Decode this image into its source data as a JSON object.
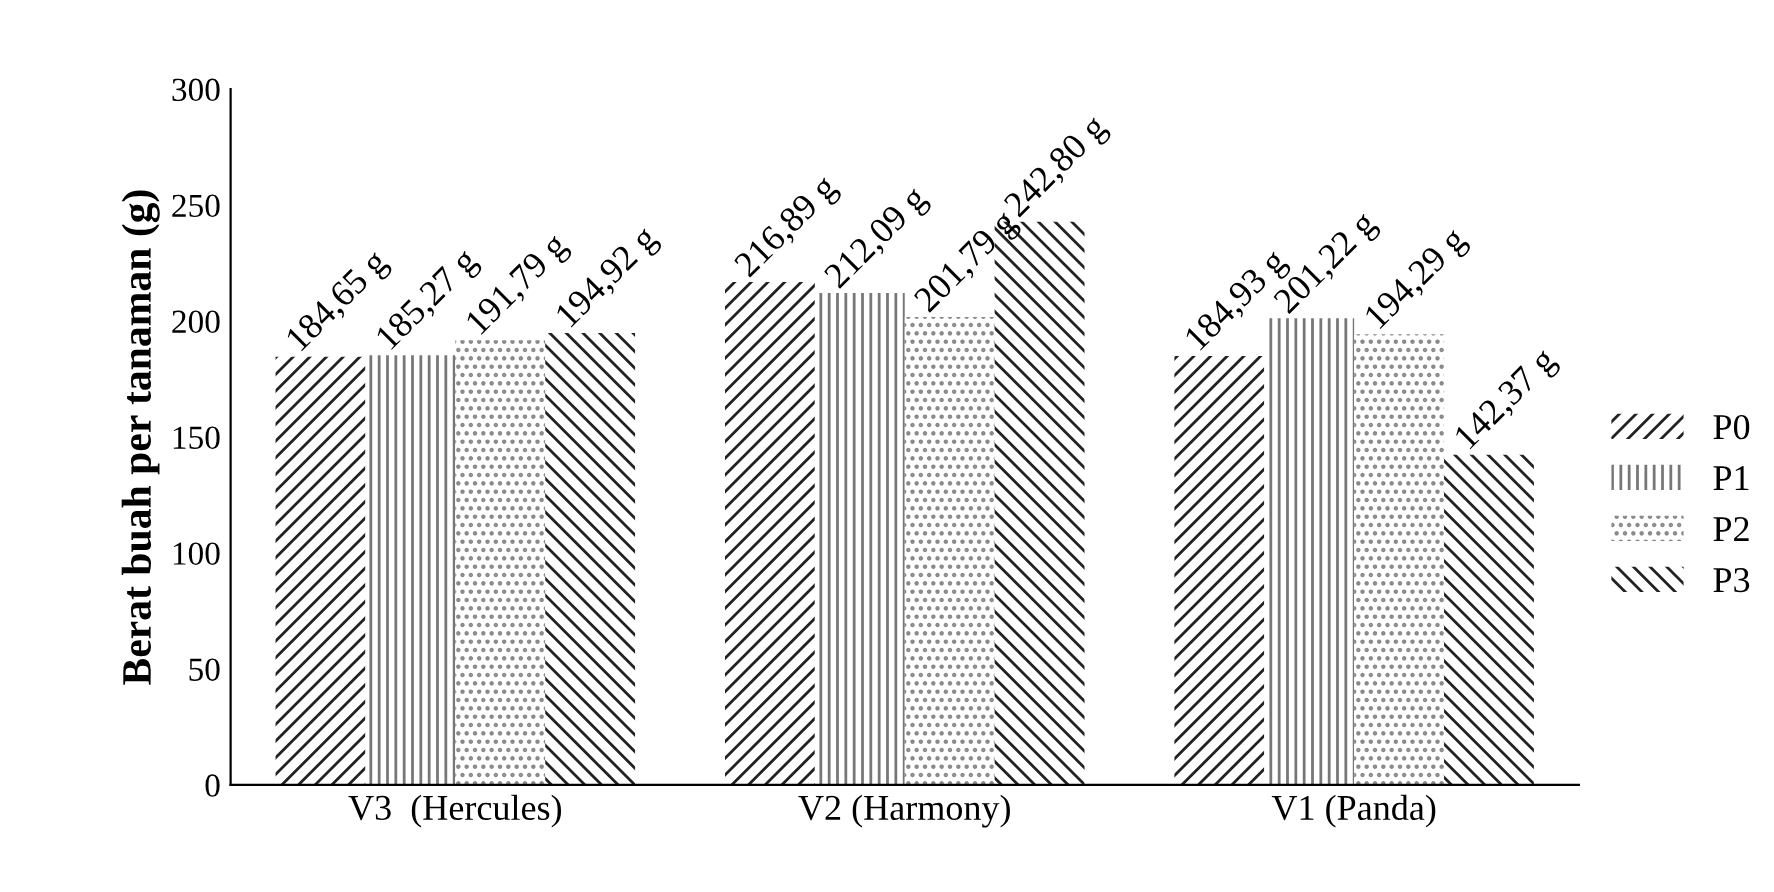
{
  "chart_data": {
    "type": "bar",
    "ylabel": "Berat buah per tanaman (g)",
    "categories": [
      "V3  (Hercules)",
      "V2 (Harmony)",
      "V1 (Panda)"
    ],
    "series": [
      {
        "name": "P0",
        "color": "#222222",
        "values": [
          184.65,
          216.89,
          184.93
        ],
        "value_labels": [
          "184,65 g",
          "216,89 g",
          "184,93 g"
        ]
      },
      {
        "name": "P1",
        "color": "#777777",
        "values": [
          185.27,
          212.09,
          201.22
        ],
        "value_labels": [
          "185,27 g",
          "212,09 g",
          "201,22 g"
        ]
      },
      {
        "name": "P2",
        "color": "#888888",
        "values": [
          191.79,
          201.79,
          194.29
        ],
        "value_labels": [
          "191,79 g",
          "201,79 g",
          "194,29 g"
        ]
      },
      {
        "name": "P3",
        "color": "#222222",
        "values": [
          194.92,
          242.8,
          142.37
        ],
        "value_labels": [
          "194,92 g",
          "242,80 g",
          "142,37 g"
        ]
      }
    ],
    "ylim": [
      0,
      300
    ],
    "yticks": [
      0,
      50,
      100,
      150,
      200,
      250,
      300
    ],
    "grid": false,
    "legend": "right"
  }
}
